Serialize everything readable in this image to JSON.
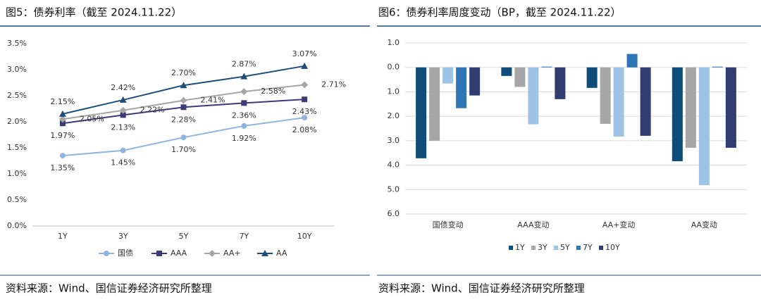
{
  "chart_data": [
    {
      "type": "line",
      "title": "图5：债券利率（截至 2024.11.22）",
      "categories": [
        "1Y",
        "3Y",
        "5Y",
        "7Y",
        "10Y"
      ],
      "series": [
        {
          "name": "国债",
          "color": "#8fb4e0",
          "marker": "circle",
          "values": [
            1.35,
            1.45,
            1.7,
            1.92,
            2.08
          ],
          "value_labels": [
            "1.35%",
            "1.45%",
            "1.70%",
            "1.92%",
            "2.08%"
          ]
        },
        {
          "name": "AAA",
          "color": "#3b3b78",
          "marker": "square",
          "values": [
            1.97,
            2.13,
            2.28,
            2.36,
            2.43
          ],
          "value_labels": [
            "1.97%",
            "2.13%",
            "2.28%",
            "2.36%",
            "2.43%"
          ]
        },
        {
          "name": "AA+",
          "color": "#a6a6a6",
          "marker": "diamond",
          "values": [
            2.05,
            2.22,
            2.41,
            2.58,
            2.71
          ],
          "value_labels": [
            "2.05%",
            "2.22%",
            "2.41%",
            "2.58%",
            "2.71%"
          ]
        },
        {
          "name": "AA",
          "color": "#1f4e79",
          "marker": "triangle",
          "values": [
            2.15,
            2.42,
            2.7,
            2.87,
            3.07
          ],
          "value_labels": [
            "2.15%",
            "2.42%",
            "2.70%",
            "2.87%",
            "3.07%"
          ]
        }
      ],
      "ylim": [
        0,
        3.5
      ],
      "yticks": [
        {
          "value": 0,
          "label": "0.0%"
        },
        {
          "value": 0.5,
          "label": "0.5%"
        },
        {
          "value": 1,
          "label": "1.0%"
        },
        {
          "value": 1.5,
          "label": "1.5%"
        },
        {
          "value": 2,
          "label": "2.0%"
        },
        {
          "value": 2.5,
          "label": "2.5%"
        },
        {
          "value": 3,
          "label": "3.0%"
        },
        {
          "value": 3.5,
          "label": "3.5%"
        }
      ],
      "grid": false,
      "legend": "bottom",
      "source": "资料来源：Wind、国信证券经济研究所整理"
    },
    {
      "type": "bar",
      "title": "图6：债券利率周度变动（BP，截至 2024.11.22）",
      "categories": [
        "国债变动",
        "AAA变动",
        "AA+变动",
        "AA变动"
      ],
      "series": [
        {
          "name": "1Y",
          "color": "#0e4d7a",
          "values": [
            -3.72,
            -0.35,
            -0.84,
            -3.84
          ]
        },
        {
          "name": "3Y",
          "color": "#a6a6a6",
          "values": [
            -3.0,
            -0.8,
            -2.31,
            -3.29
          ]
        },
        {
          "name": "5Y",
          "color": "#9dc3e6",
          "values": [
            -0.66,
            -2.33,
            -2.83,
            -4.82
          ]
        },
        {
          "name": "7Y",
          "color": "#2e75b6",
          "values": [
            -1.67,
            0.03,
            0.55,
            0.03
          ]
        },
        {
          "name": "10Y",
          "color": "#2f3d70",
          "values": [
            -1.15,
            -1.3,
            -2.8,
            -3.29
          ]
        }
      ],
      "ylim": [
        -6,
        1
      ],
      "yticks": [
        {
          "value": 1,
          "label": "1.0"
        },
        {
          "value": 0,
          "label": "0.0"
        },
        {
          "value": -1,
          "label": "1.0"
        },
        {
          "value": -2,
          "label": "2.0"
        },
        {
          "value": -3,
          "label": "3.0"
        },
        {
          "value": -4,
          "label": "4.0"
        },
        {
          "value": -5,
          "label": "5.0"
        },
        {
          "value": -6,
          "label": "6.0"
        }
      ],
      "grid": true,
      "legend": "bottom",
      "source": "资料来源：Wind、国信证券经济研究所整理"
    }
  ]
}
